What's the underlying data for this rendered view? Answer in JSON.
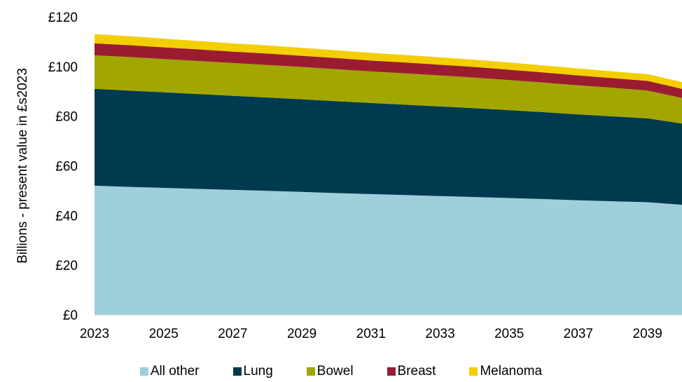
{
  "chart_data": {
    "type": "area",
    "stacked": true,
    "ylabel": "Billions - present value in £s2023",
    "x": [
      2023,
      2024,
      2025,
      2026,
      2027,
      2028,
      2029,
      2030,
      2031,
      2032,
      2033,
      2034,
      2035,
      2036,
      2037,
      2038,
      2039,
      2040
    ],
    "x_tick_labels": [
      "2023",
      "2025",
      "2027",
      "2029",
      "2031",
      "2033",
      "2035",
      "2037",
      "2039"
    ],
    "xlim": [
      2023,
      2040
    ],
    "ylim": [
      0,
      120
    ],
    "y_ticks": [
      0,
      20,
      40,
      60,
      80,
      100,
      120
    ],
    "y_tick_labels": [
      "£0",
      "£20",
      "£40",
      "£60",
      "£80",
      "£100",
      "£120"
    ],
    "grid": false,
    "legend_position": "bottom",
    "series": [
      {
        "name": "All other",
        "color": "#9ecfda",
        "values": [
          52.0,
          51.5,
          51.1,
          50.7,
          50.3,
          49.9,
          49.5,
          49.0,
          48.6,
          48.2,
          47.8,
          47.4,
          47.0,
          46.6,
          46.1,
          45.7,
          45.3,
          44.3
        ]
      },
      {
        "name": "Lung",
        "color": "#003a4f",
        "values": [
          39.0,
          38.8,
          38.5,
          38.2,
          37.9,
          37.6,
          37.3,
          37.0,
          36.7,
          36.4,
          36.1,
          35.8,
          35.4,
          35.0,
          34.6,
          34.2,
          33.8,
          32.7
        ]
      },
      {
        "name": "Bowel",
        "color": "#a2a700",
        "values": [
          13.5,
          13.5,
          13.4,
          13.3,
          13.2,
          13.1,
          13.0,
          12.9,
          12.7,
          12.6,
          12.5,
          12.3,
          12.1,
          11.9,
          11.7,
          11.5,
          11.2,
          10.3
        ]
      },
      {
        "name": "Breast",
        "color": "#9b1c31",
        "values": [
          4.8,
          4.8,
          4.7,
          4.7,
          4.6,
          4.6,
          4.5,
          4.5,
          4.4,
          4.4,
          4.3,
          4.3,
          4.2,
          4.1,
          4.0,
          3.9,
          3.9,
          3.7
        ]
      },
      {
        "name": "Melanoma",
        "color": "#f3ce00",
        "values": [
          3.7,
          3.6,
          3.5,
          3.4,
          3.3,
          3.3,
          3.2,
          3.1,
          3.1,
          3.0,
          3.0,
          2.9,
          2.9,
          2.8,
          2.8,
          2.7,
          2.7,
          2.7
        ]
      }
    ]
  }
}
